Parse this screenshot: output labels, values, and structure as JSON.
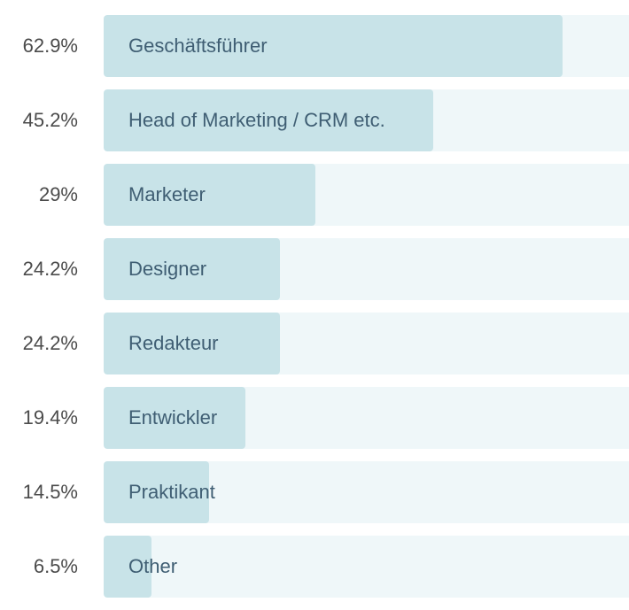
{
  "chart_data": {
    "type": "bar",
    "orientation": "horizontal",
    "categories": [
      "Geschäftsführer",
      "Head of Marketing / CRM etc.",
      "Marketer",
      "Designer",
      "Redakteur",
      "Entwickler",
      "Praktikant",
      "Other"
    ],
    "values": [
      62.9,
      45.2,
      29,
      24.2,
      24.2,
      19.4,
      14.5,
      6.5
    ],
    "value_labels": [
      "62.9%",
      "45.2%",
      "29%",
      "24.2%",
      "24.2%",
      "19.4%",
      "14.5%",
      "6.5%"
    ],
    "value_unit": "%",
    "title": "",
    "xlabel": "",
    "ylabel": "",
    "xlim": [
      0,
      72
    ]
  },
  "colors": {
    "bar": "#c8e3e8",
    "track": "#eff7f9",
    "label": "#3f5e73",
    "percent": "#4b4b4b"
  }
}
